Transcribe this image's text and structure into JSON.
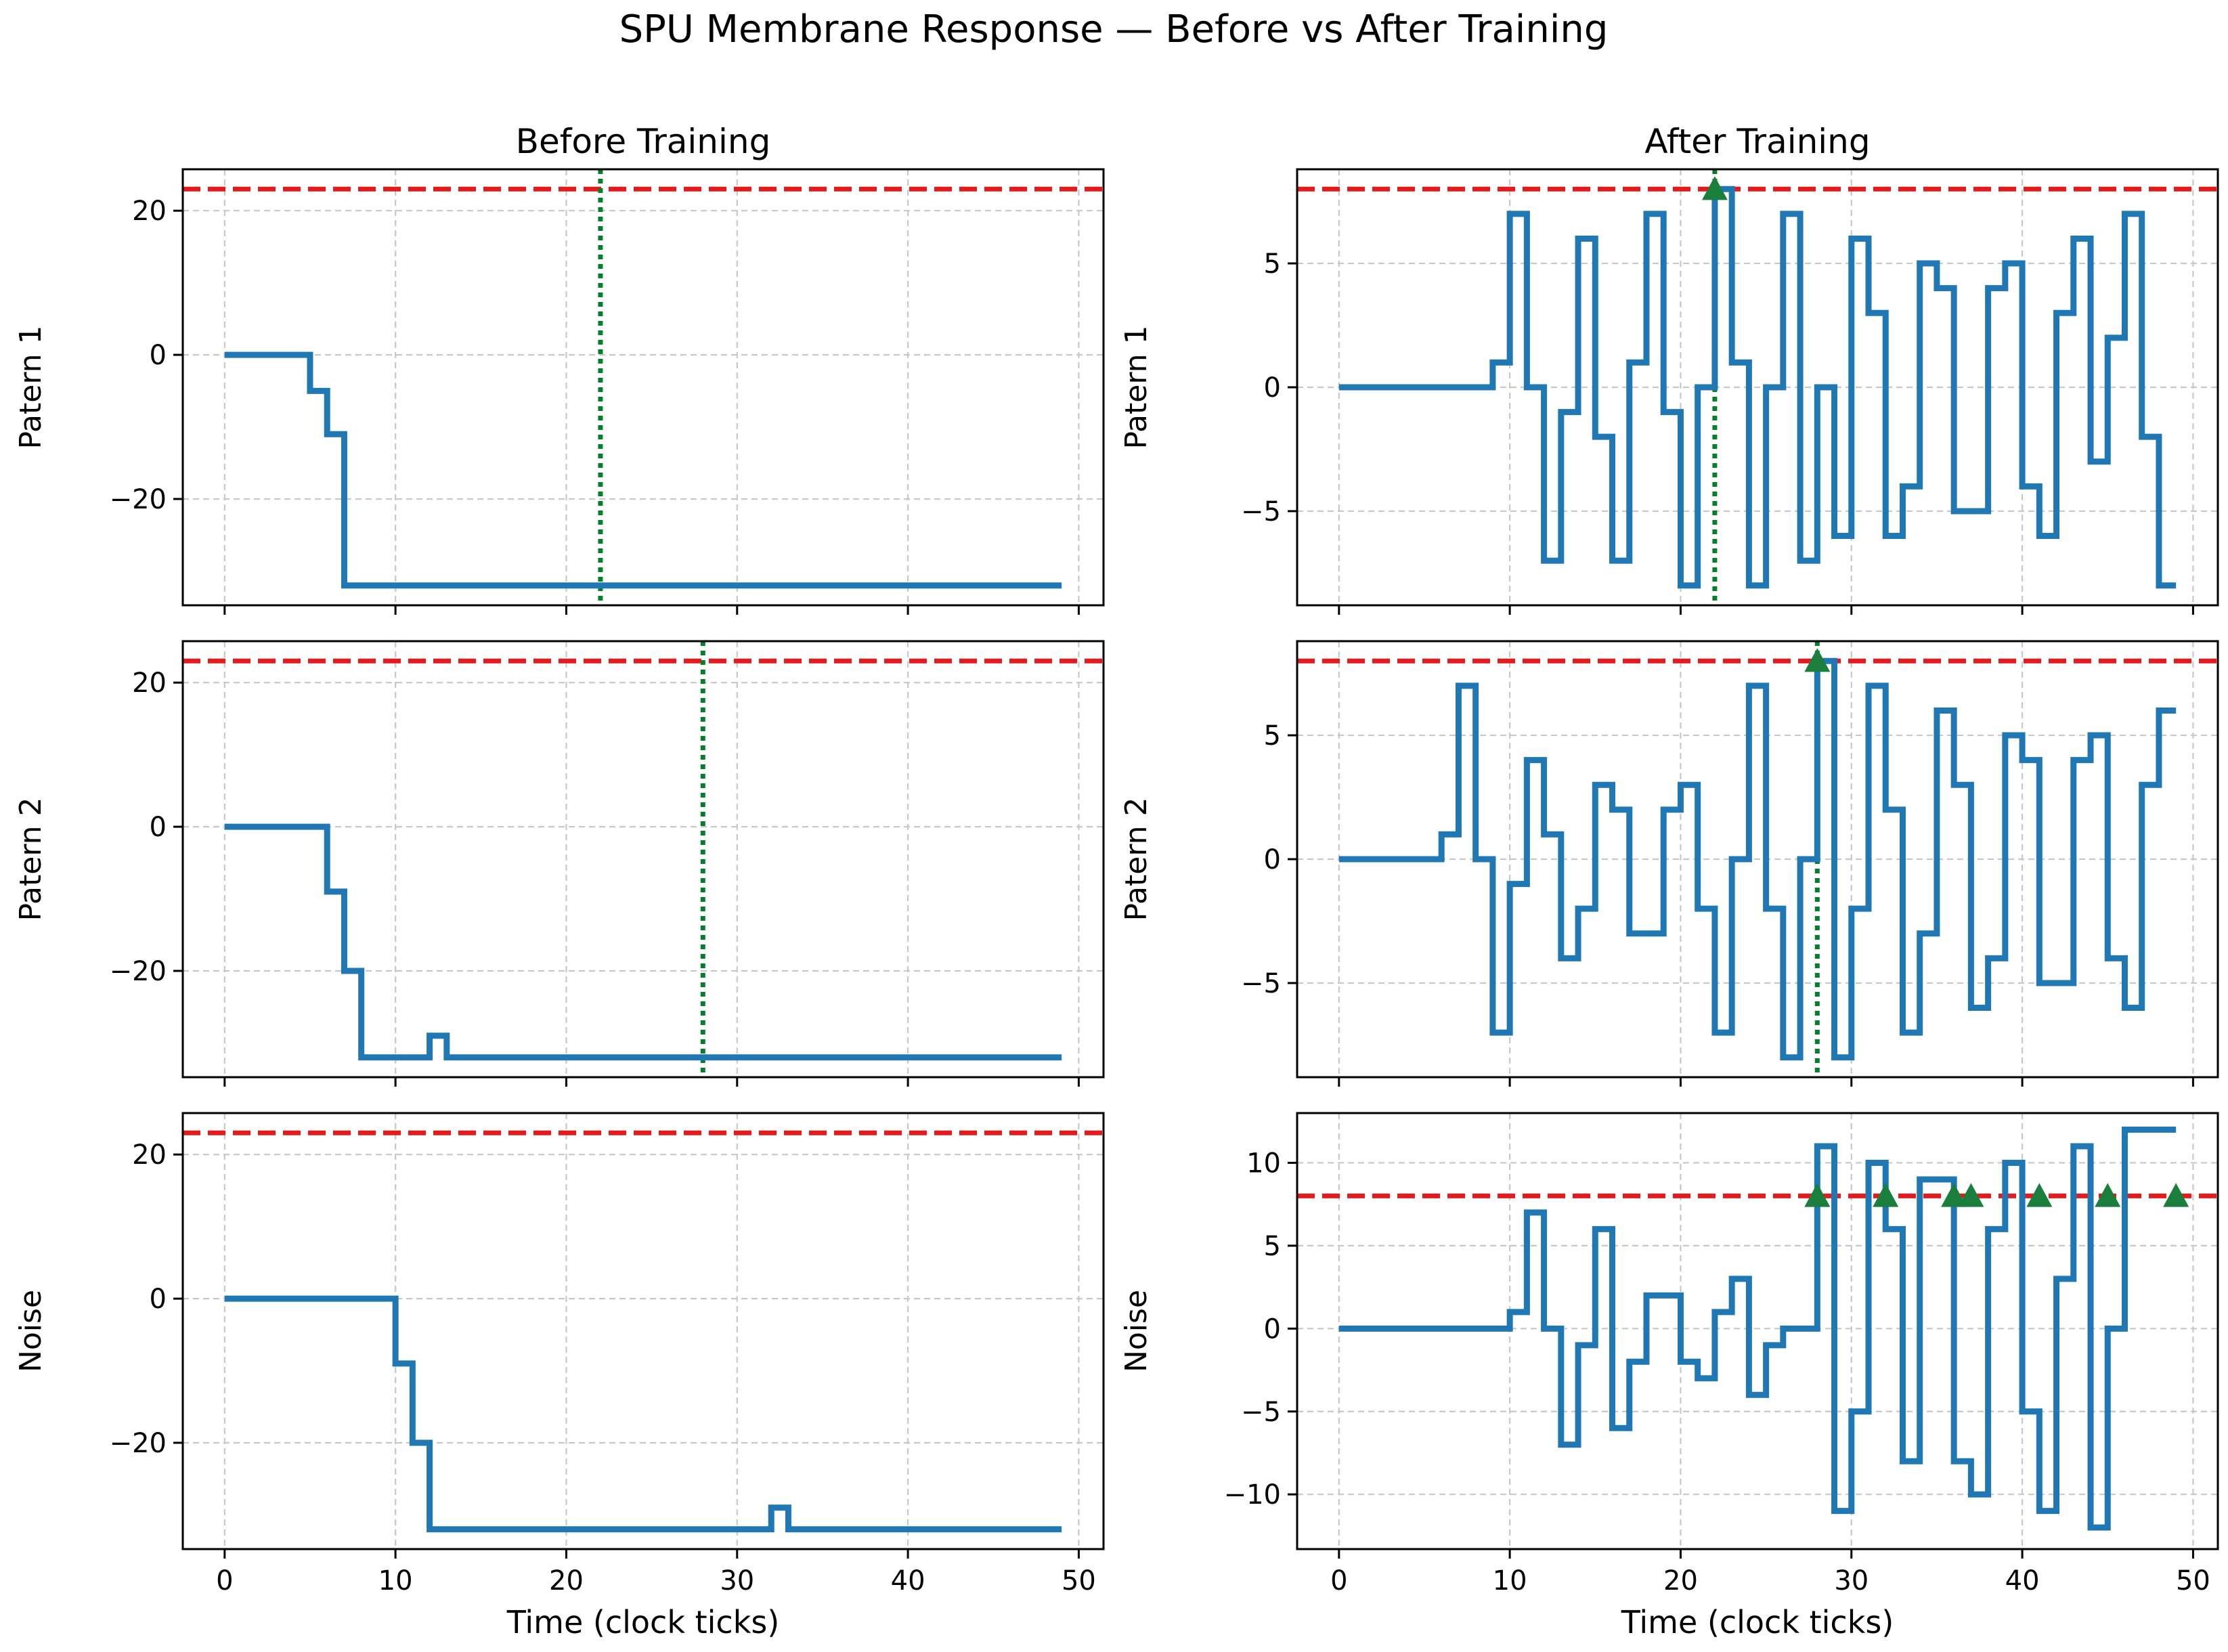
{
  "figure": {
    "title": "SPU Membrane Response — Before vs After Training"
  },
  "colors": {
    "trace": "#1f77b4",
    "threshold": "#e41a1c",
    "target_line": "#00802b",
    "spike_marker": "#1a7f3c",
    "grid": "#c8c8c8",
    "axes": "#000000"
  },
  "chart_data": [
    {
      "type": "line",
      "column_title": "Before Training",
      "ylabel": "Patern 1",
      "xlabel": "",
      "xlim": [
        -2.45,
        51.45
      ],
      "ylim": [
        -34.75,
        25.75
      ],
      "xticks": [
        0,
        10,
        20,
        30,
        40,
        50
      ],
      "yticks": [
        -20,
        0,
        20
      ],
      "grid": true,
      "step": "post",
      "x": [
        0,
        1,
        2,
        3,
        4,
        5,
        6,
        7,
        8,
        9,
        10,
        11,
        12,
        13,
        14,
        15,
        16,
        17,
        18,
        19,
        20,
        21,
        22,
        23,
        24,
        25,
        26,
        27,
        28,
        29,
        30,
        31,
        32,
        33,
        34,
        35,
        36,
        37,
        38,
        39,
        40,
        41,
        42,
        43,
        44,
        45,
        46,
        47,
        48,
        49
      ],
      "y": [
        0,
        0,
        0,
        0,
        0,
        -5,
        -11,
        -32,
        -32,
        -32,
        -32,
        -32,
        -32,
        -32,
        -32,
        -32,
        -32,
        -32,
        -32,
        -32,
        -32,
        -32,
        -32,
        -32,
        -32,
        -32,
        -32,
        -32,
        -32,
        -32,
        -32,
        -32,
        -32,
        -32,
        -32,
        -32,
        -32,
        -32,
        -32,
        -32,
        -32,
        -32,
        -32,
        -32,
        -32,
        -32,
        -32,
        -32,
        -32,
        -32
      ],
      "threshold": 23,
      "target_time": 22,
      "spikes": []
    },
    {
      "type": "line",
      "column_title": "After Training",
      "ylabel": "Patern 1",
      "xlabel": "",
      "xlim": [
        -2.45,
        51.45
      ],
      "ylim": [
        -8.8,
        8.8
      ],
      "xticks": [
        0,
        10,
        20,
        30,
        40,
        50
      ],
      "yticks": [
        -5,
        0,
        5
      ],
      "grid": true,
      "step": "post",
      "x": [
        0,
        1,
        2,
        3,
        4,
        5,
        6,
        7,
        8,
        9,
        10,
        11,
        12,
        13,
        14,
        15,
        16,
        17,
        18,
        19,
        20,
        21,
        22,
        23,
        24,
        25,
        26,
        27,
        28,
        29,
        30,
        31,
        32,
        33,
        34,
        35,
        36,
        37,
        38,
        39,
        40,
        41,
        42,
        43,
        44,
        45,
        46,
        47,
        48,
        49
      ],
      "y": [
        0,
        0,
        0,
        0,
        0,
        0,
        0,
        0,
        0,
        1,
        7,
        0,
        -7,
        -1,
        6,
        -2,
        -7,
        1,
        7,
        -1,
        -8,
        0,
        8,
        1,
        -8,
        0,
        7,
        -7,
        0,
        -6,
        6,
        3,
        -6,
        -4,
        5,
        4,
        -5,
        -5,
        4,
        5,
        -4,
        -6,
        3,
        6,
        -3,
        2,
        7,
        -2,
        -8,
        -8
      ],
      "threshold": 8,
      "target_time": 22,
      "spikes": [
        22
      ]
    },
    {
      "type": "line",
      "column_title": "",
      "ylabel": "Patern 2",
      "xlabel": "",
      "xlim": [
        -2.45,
        51.45
      ],
      "ylim": [
        -34.75,
        25.75
      ],
      "xticks": [
        0,
        10,
        20,
        30,
        40,
        50
      ],
      "yticks": [
        -20,
        0,
        20
      ],
      "grid": true,
      "step": "post",
      "x": [
        0,
        1,
        2,
        3,
        4,
        5,
        6,
        7,
        8,
        9,
        10,
        11,
        12,
        13,
        14,
        15,
        16,
        17,
        18,
        19,
        20,
        21,
        22,
        23,
        24,
        25,
        26,
        27,
        28,
        29,
        30,
        31,
        32,
        33,
        34,
        35,
        36,
        37,
        38,
        39,
        40,
        41,
        42,
        43,
        44,
        45,
        46,
        47,
        48,
        49
      ],
      "y": [
        0,
        0,
        0,
        0,
        0,
        0,
        -9,
        -20,
        -32,
        -32,
        -32,
        -32,
        -29,
        -32,
        -32,
        -32,
        -32,
        -32,
        -32,
        -32,
        -32,
        -32,
        -32,
        -32,
        -32,
        -32,
        -32,
        -32,
        -32,
        -32,
        -32,
        -32,
        -32,
        -32,
        -32,
        -32,
        -32,
        -32,
        -32,
        -32,
        -32,
        -32,
        -32,
        -32,
        -32,
        -32,
        -32,
        -32,
        -32,
        -32
      ],
      "threshold": 23,
      "target_time": 28,
      "spikes": []
    },
    {
      "type": "line",
      "column_title": "",
      "ylabel": "Patern 2",
      "xlabel": "",
      "xlim": [
        -2.45,
        51.45
      ],
      "ylim": [
        -8.8,
        8.8
      ],
      "xticks": [
        0,
        10,
        20,
        30,
        40,
        50
      ],
      "yticks": [
        -5,
        0,
        5
      ],
      "grid": true,
      "step": "post",
      "x": [
        0,
        1,
        2,
        3,
        4,
        5,
        6,
        7,
        8,
        9,
        10,
        11,
        12,
        13,
        14,
        15,
        16,
        17,
        18,
        19,
        20,
        21,
        22,
        23,
        24,
        25,
        26,
        27,
        28,
        29,
        30,
        31,
        32,
        33,
        34,
        35,
        36,
        37,
        38,
        39,
        40,
        41,
        42,
        43,
        44,
        45,
        46,
        47,
        48,
        49
      ],
      "y": [
        0,
        0,
        0,
        0,
        0,
        0,
        1,
        7,
        0,
        -7,
        -1,
        4,
        1,
        -4,
        -2,
        3,
        2,
        -3,
        -3,
        2,
        3,
        -2,
        -7,
        0,
        7,
        -2,
        -8,
        0,
        8,
        -8,
        -2,
        7,
        2,
        -7,
        -3,
        6,
        3,
        -6,
        -4,
        5,
        4,
        -5,
        -5,
        4,
        5,
        -4,
        -6,
        3,
        6,
        6
      ],
      "threshold": 8,
      "target_time": 28,
      "spikes": [
        28
      ]
    },
    {
      "type": "line",
      "column_title": "",
      "ylabel": "Noise",
      "xlabel": "Time (clock ticks)",
      "xlim": [
        -2.45,
        51.45
      ],
      "ylim": [
        -34.75,
        25.75
      ],
      "xticks": [
        0,
        10,
        20,
        30,
        40,
        50
      ],
      "yticks": [
        -20,
        0,
        20
      ],
      "grid": true,
      "step": "post",
      "x": [
        0,
        1,
        2,
        3,
        4,
        5,
        6,
        7,
        8,
        9,
        10,
        11,
        12,
        13,
        14,
        15,
        16,
        17,
        18,
        19,
        20,
        21,
        22,
        23,
        24,
        25,
        26,
        27,
        28,
        29,
        30,
        31,
        32,
        33,
        34,
        35,
        36,
        37,
        38,
        39,
        40,
        41,
        42,
        43,
        44,
        45,
        46,
        47,
        48,
        49
      ],
      "y": [
        0,
        0,
        0,
        0,
        0,
        0,
        0,
        0,
        0,
        0,
        -9,
        -20,
        -32,
        -32,
        -32,
        -32,
        -32,
        -32,
        -32,
        -32,
        -32,
        -32,
        -32,
        -32,
        -32,
        -32,
        -32,
        -32,
        -32,
        -32,
        -32,
        -32,
        -29,
        -32,
        -32,
        -32,
        -32,
        -32,
        -32,
        -32,
        -32,
        -32,
        -32,
        -32,
        -32,
        -32,
        -32,
        -32,
        -32,
        -32
      ],
      "threshold": 23,
      "target_time": null,
      "spikes": []
    },
    {
      "type": "line",
      "column_title": "",
      "ylabel": "Noise",
      "xlabel": "Time (clock ticks)",
      "xlim": [
        -2.45,
        51.45
      ],
      "ylim": [
        -13.3,
        13.0
      ],
      "xticks": [
        0,
        10,
        20,
        30,
        40,
        50
      ],
      "yticks": [
        -10,
        -5,
        0,
        5,
        10
      ],
      "grid": true,
      "step": "post",
      "x": [
        0,
        1,
        2,
        3,
        4,
        5,
        6,
        7,
        8,
        9,
        10,
        11,
        12,
        13,
        14,
        15,
        16,
        17,
        18,
        19,
        20,
        21,
        22,
        23,
        24,
        25,
        26,
        27,
        28,
        29,
        30,
        31,
        32,
        33,
        34,
        35,
        36,
        37,
        38,
        39,
        40,
        41,
        42,
        43,
        44,
        45,
        46,
        47,
        48,
        49
      ],
      "y": [
        0,
        0,
        0,
        0,
        0,
        0,
        0,
        0,
        0,
        0,
        1,
        7,
        0,
        -7,
        -1,
        6,
        -6,
        -2,
        2,
        2,
        -2,
        -3,
        1,
        3,
        -4,
        -1,
        0,
        0,
        11,
        -11,
        -5,
        10,
        6,
        -8,
        9,
        9,
        -8,
        -10,
        6,
        10,
        -5,
        -11,
        3,
        11,
        -12,
        0,
        12,
        12,
        12,
        12
      ],
      "threshold": 8,
      "target_time": null,
      "spikes": [
        28,
        32,
        36,
        37,
        41,
        45,
        49
      ]
    }
  ]
}
